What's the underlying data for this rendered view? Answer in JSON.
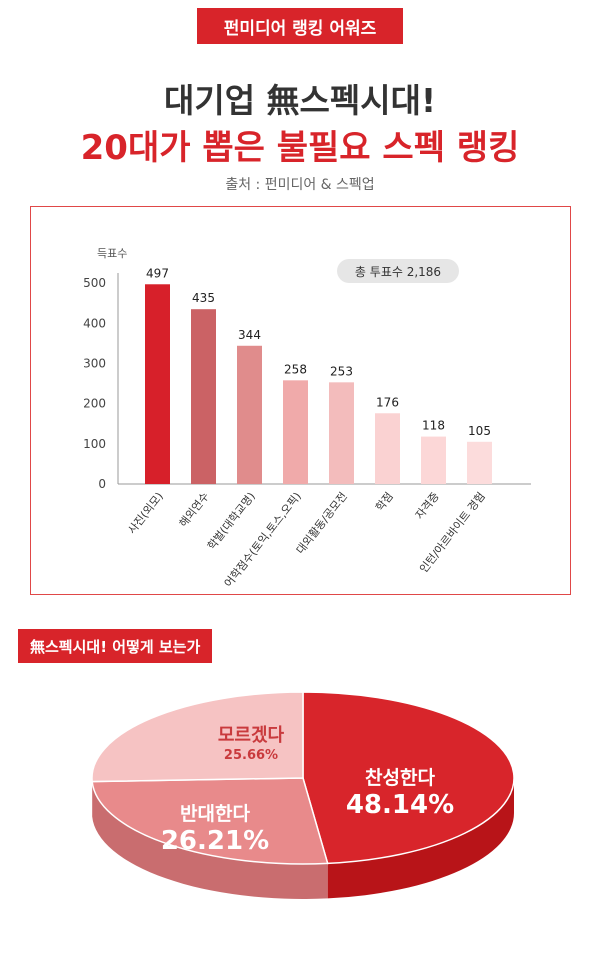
{
  "header": {
    "badge": "펀미디어 랭킹 어워즈",
    "title_line1": "대기업 無스펙시대!",
    "title_line2": "20대가 뽑은 불필요 스펙 랭킹",
    "source": "출처 : 펀미디어 & 스펙업"
  },
  "section2": {
    "badge": "無스펙시대! 어떻게 보는가"
  },
  "colors": {
    "brand_red": "#d8242a",
    "bars": [
      "#d7202a",
      "#cb6265",
      "#e08c8c",
      "#f0aaaa",
      "#f3bcbc",
      "#fad2d2",
      "#fcd7d7",
      "#fcdcdc"
    ],
    "pie_agree": "#d8252b",
    "pie_oppose": "#e88a8b",
    "pie_unknown": "#f6c3c3"
  },
  "chart_data": [
    {
      "type": "bar",
      "ylabel": "득표수",
      "annotation": "총 투표수 2,186",
      "yticks": [
        0,
        100,
        200,
        300,
        400,
        500
      ],
      "ylim": [
        0,
        540
      ],
      "grid": false,
      "categories": [
        "사진(외모)",
        "해외연수",
        "학벌(대학교명)",
        "어학점수(토익,토스,오픽)",
        "대외활동/공모전",
        "학점",
        "자격증",
        "인턴/아르바이트 경험"
      ],
      "values": [
        497,
        435,
        344,
        258,
        253,
        176,
        118,
        105
      ],
      "value_labels": [
        "497",
        "435",
        "344",
        "258",
        "253",
        "176",
        "118",
        "105"
      ]
    },
    {
      "type": "pie",
      "style": "3d",
      "slices": [
        {
          "label": "찬성한다",
          "value_label": "48.14%",
          "value": 48.14
        },
        {
          "label": "반대한다",
          "value_label": "26.21%",
          "value": 26.21
        },
        {
          "label": "모르겠다",
          "value_label": "25.66%",
          "value": 25.66
        }
      ]
    }
  ]
}
